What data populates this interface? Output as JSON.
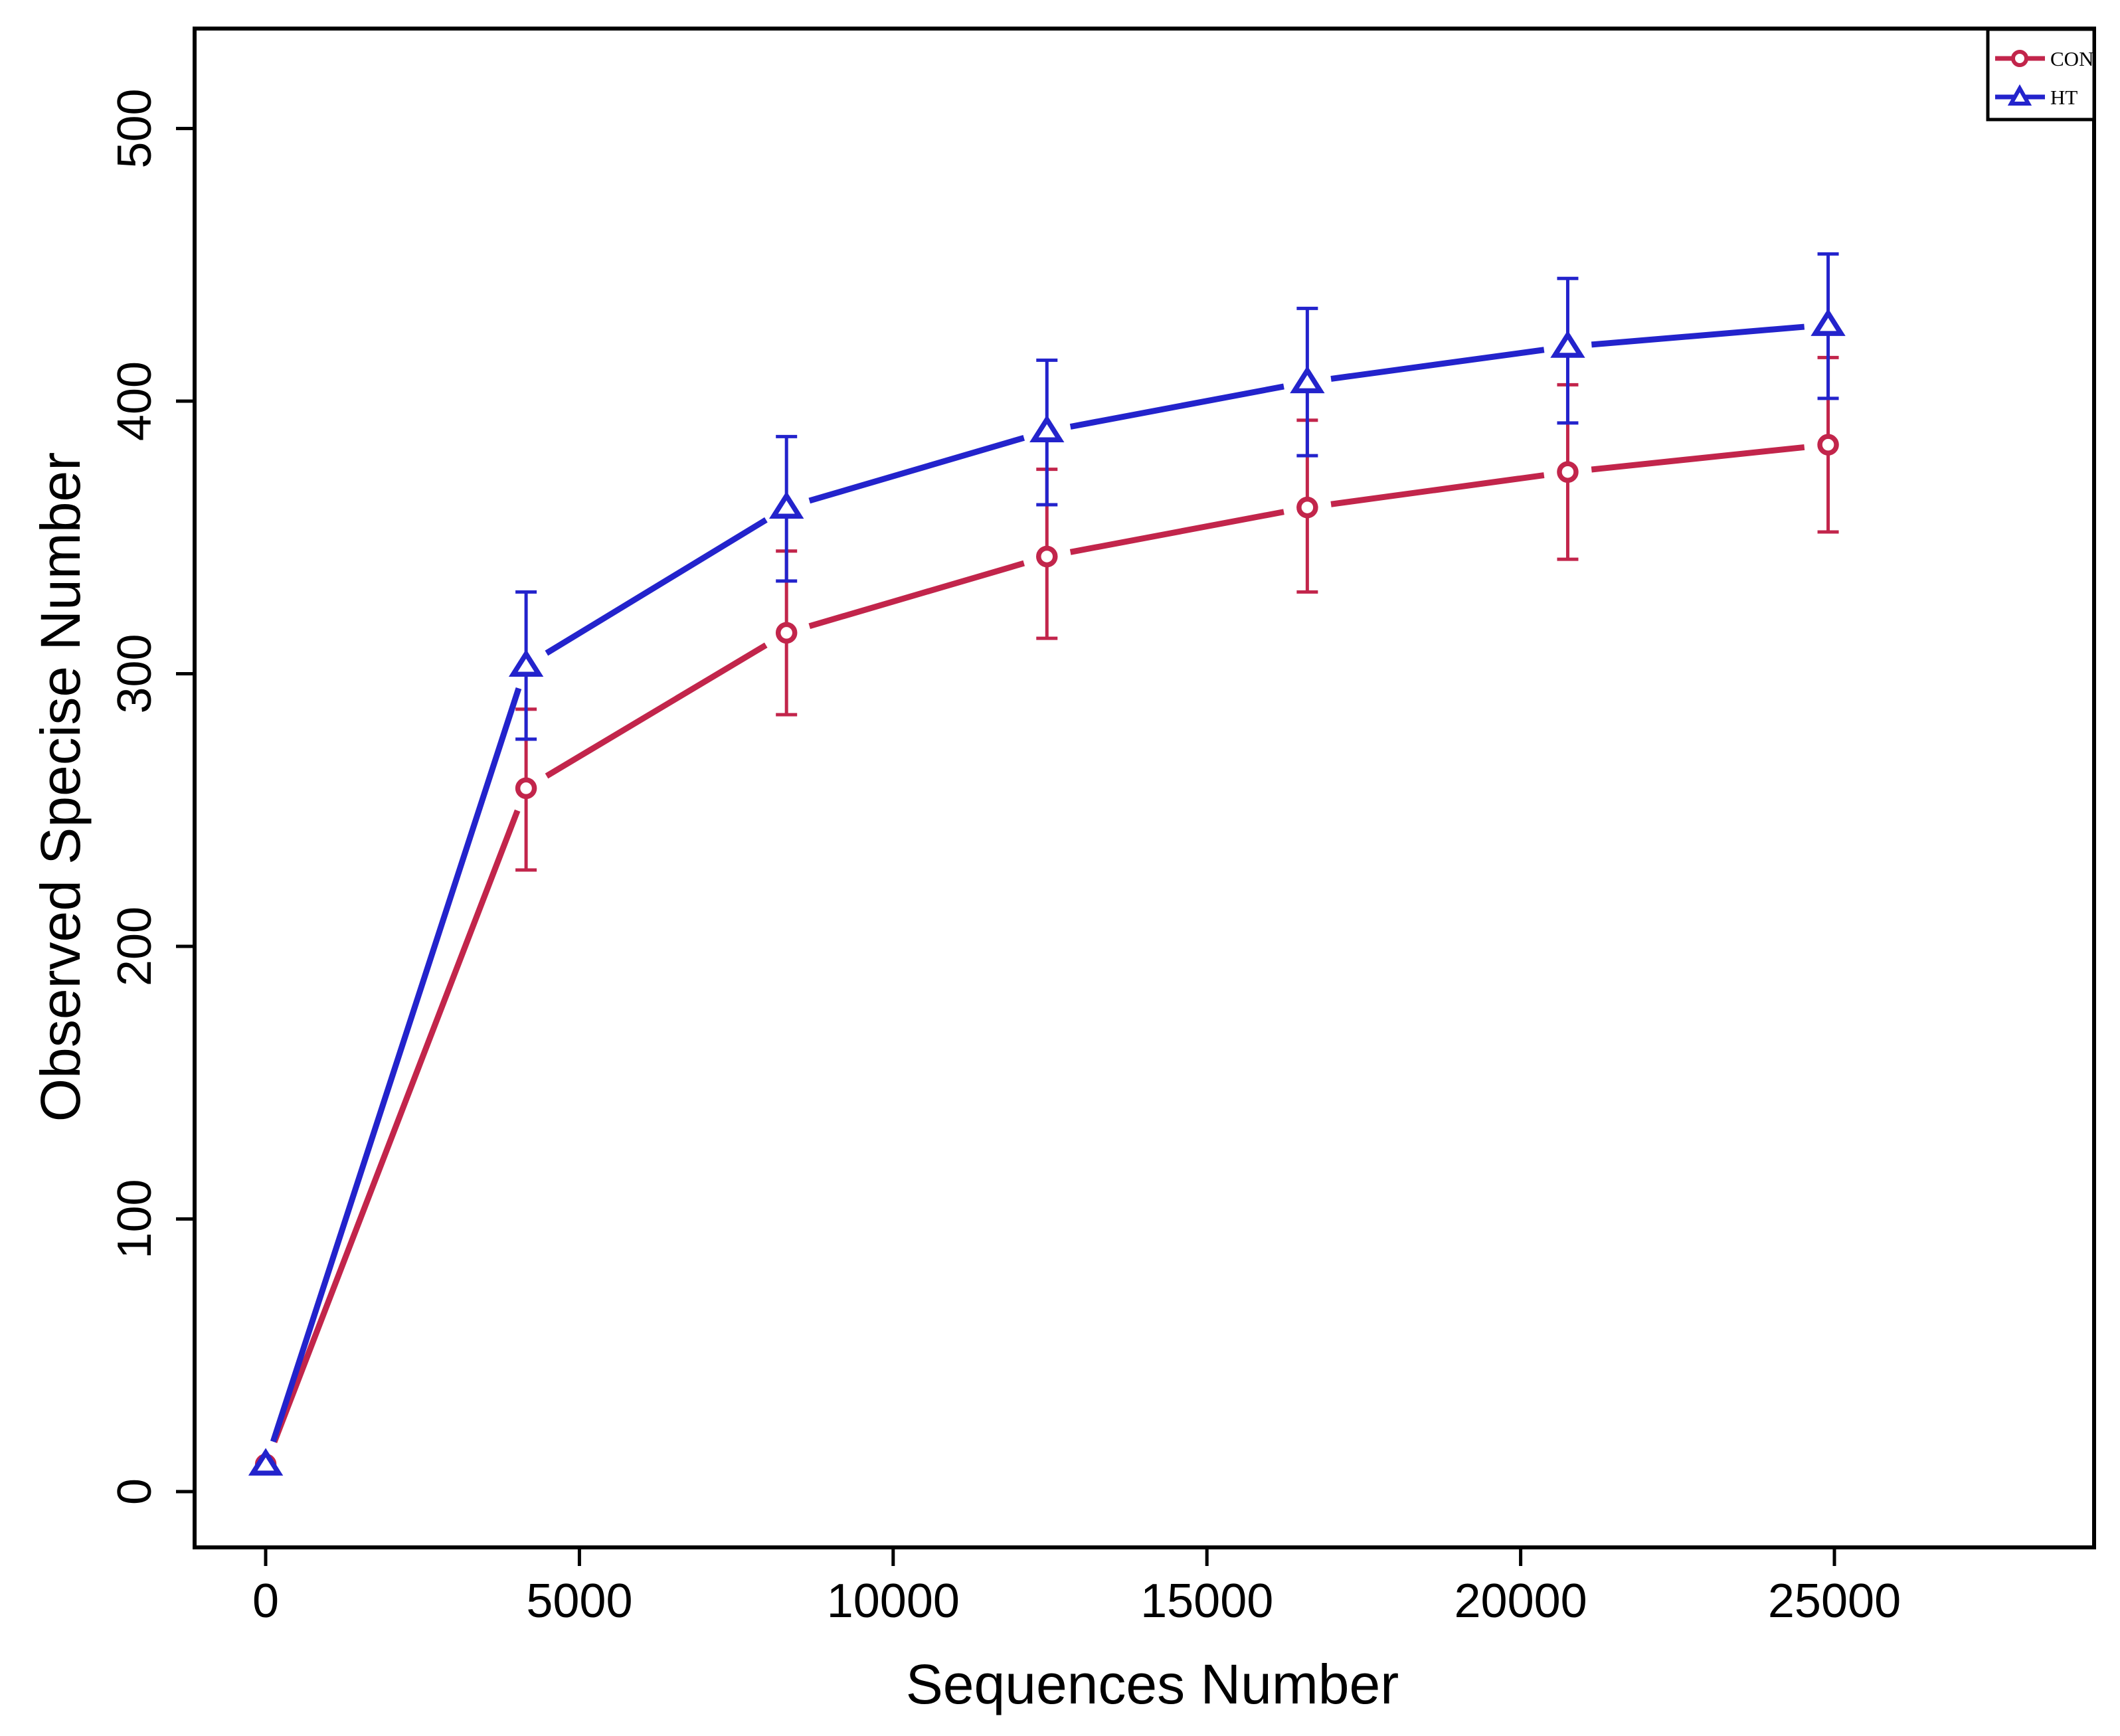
{
  "figure": {
    "background": "#ffffff",
    "frame_color": "#000000"
  },
  "chart_data": {
    "type": "line",
    "title": "",
    "xlabel": "Sequences Number",
    "ylabel": "Observed Specise Number",
    "x_ticks": [
      0,
      5000,
      10000,
      15000,
      20000,
      25000
    ],
    "y_ticks": [
      0,
      100,
      200,
      300,
      400,
      500
    ],
    "xlim": [
      -1130,
      29100
    ],
    "ylim": [
      -21,
      537
    ],
    "grid": false,
    "legend": {
      "position": "top-right",
      "entries": [
        "CON",
        "HT"
      ]
    },
    "series": [
      {
        "name": "CON",
        "color": "#C2254B",
        "marker": "circle",
        "x": [
          1,
          4150,
          8300,
          12450,
          16600,
          20750,
          24900
        ],
        "y": [
          10,
          258,
          315,
          343,
          361,
          374,
          384
        ],
        "y_low": [
          10,
          228,
          285,
          313,
          330,
          342,
          352
        ],
        "y_high": [
          10,
          287,
          345,
          375,
          393,
          406,
          416
        ]
      },
      {
        "name": "HT",
        "color": "#2323CC",
        "marker": "triangle",
        "x": [
          1,
          4150,
          8300,
          12450,
          16600,
          20750,
          24900
        ],
        "y": [
          10,
          303,
          361,
          389,
          407,
          420,
          428
        ],
        "y_low": [
          10,
          276,
          334,
          362,
          380,
          392,
          401
        ],
        "y_high": [
          10,
          330,
          387,
          415,
          434,
          445,
          454
        ]
      }
    ]
  }
}
